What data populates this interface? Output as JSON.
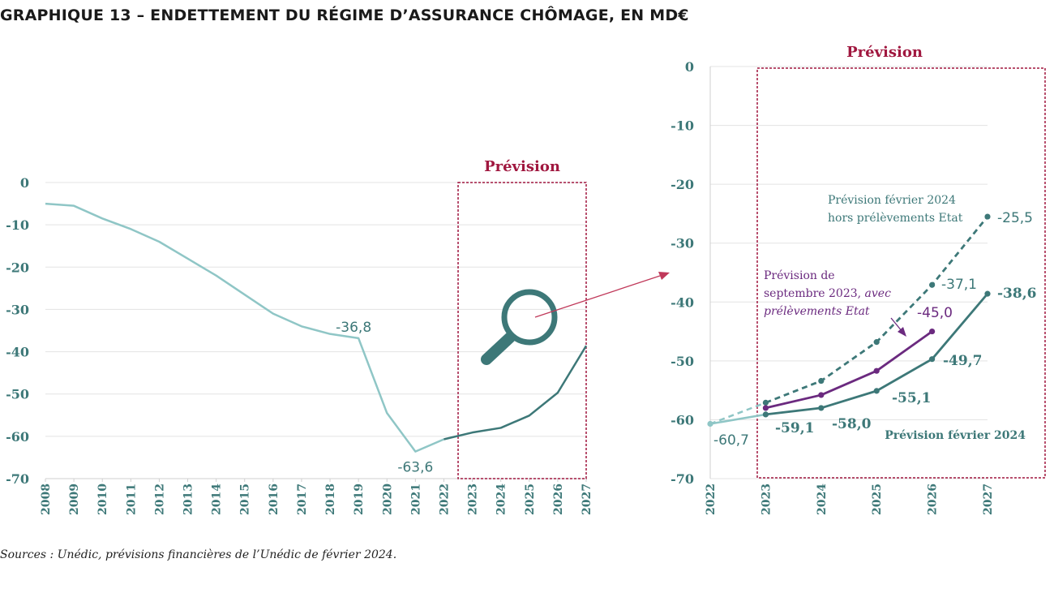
{
  "title": "GRAPHIQUE 13 – ENDETTEMENT DU RÉGIME D’ASSURANCE CHÔMAGE, EN MD€",
  "source": "Sources : Unédic, prévisions financières de l’Unédic de février 2024.",
  "colors": {
    "historical": "#8fc6c6",
    "forecast": "#3d7878",
    "sept2023": "#6b2a7f",
    "forecast_box": "#a0173f",
    "axis_text": "#3d7878",
    "grid": "#e3e3e3",
    "arrow": "#c0395a",
    "magnifier": "#3d7878"
  },
  "icons": {
    "zoom": "magnifier-icon",
    "arrow": "arrow-right-icon"
  },
  "chart_data": [
    {
      "type": "line",
      "yticks": [
        0,
        -10,
        -20,
        -30,
        -40,
        -50,
        -60,
        -70
      ],
      "ylim": [
        -70,
        0
      ],
      "categories": [
        "2008",
        "2009",
        "2010",
        "2011",
        "2012",
        "2013",
        "2014",
        "2015",
        "2016",
        "2017",
        "2018",
        "2019",
        "2020",
        "2021",
        "2022",
        "2023",
        "2024",
        "2025",
        "2026",
        "2027"
      ],
      "series": [
        {
          "name": "Endettement",
          "values": [
            -5.0,
            -5.5,
            -8.5,
            -11.0,
            -14.0,
            -18.0,
            -22.0,
            -26.5,
            -31.0,
            -34.0,
            -35.8,
            -36.8,
            -54.5,
            -63.6,
            -60.7,
            -59.1,
            -58.0,
            -55.1,
            -49.7,
            -38.6
          ],
          "forecast_from": "2022"
        }
      ],
      "forecast_label": "Prévision",
      "forecast_range": [
        "2022.5",
        "2027"
      ],
      "annotations": [
        {
          "year": "2019",
          "value": -36.8,
          "text": "-36,8"
        },
        {
          "year": "2021",
          "value": -63.6,
          "text": "-63,6"
        }
      ]
    },
    {
      "type": "line",
      "yticks": [
        0,
        -10,
        -20,
        -30,
        -40,
        -50,
        -60,
        -70
      ],
      "ylim": [
        -70,
        0
      ],
      "categories": [
        "2022",
        "2023",
        "2024",
        "2025",
        "2026",
        "2027"
      ],
      "forecast_label": "Prévision",
      "series": [
        {
          "name": "Prévision février 2024",
          "values": [
            -60.7,
            -59.1,
            -58.0,
            -55.1,
            -49.7,
            -38.6
          ],
          "labels": [
            "-60,7",
            "-59,1",
            "-58,0",
            "-55,1",
            "-49,7",
            "-38,6"
          ]
        },
        {
          "name": "Prévision février 2024 hors prélèvements Etat",
          "dashed": true,
          "values": [
            -60.7,
            -57.1,
            -53.4,
            -46.8,
            -37.1,
            -25.5
          ],
          "labels": [
            null,
            null,
            null,
            null,
            "-37,1",
            "-25,5"
          ]
        },
        {
          "name": "Prévision de septembre 2023, avec prélèvements Etat",
          "values": [
            null,
            -58.0,
            -55.8,
            -51.7,
            -45.0,
            null
          ],
          "labels": [
            null,
            null,
            null,
            null,
            "-45,0",
            null
          ]
        }
      ],
      "legend_texts": {
        "feb2024": "Prévision février 2024",
        "feb2024_hors_line1": "Prévision février 2024",
        "feb2024_hors_line2": "hors prélèvements Etat",
        "sept2023_line1": "Prévision de",
        "sept2023_line2_a": "septembre 2023, ",
        "sept2023_line2_b": "avec",
        "sept2023_line3": "prélèvements Etat"
      }
    }
  ]
}
